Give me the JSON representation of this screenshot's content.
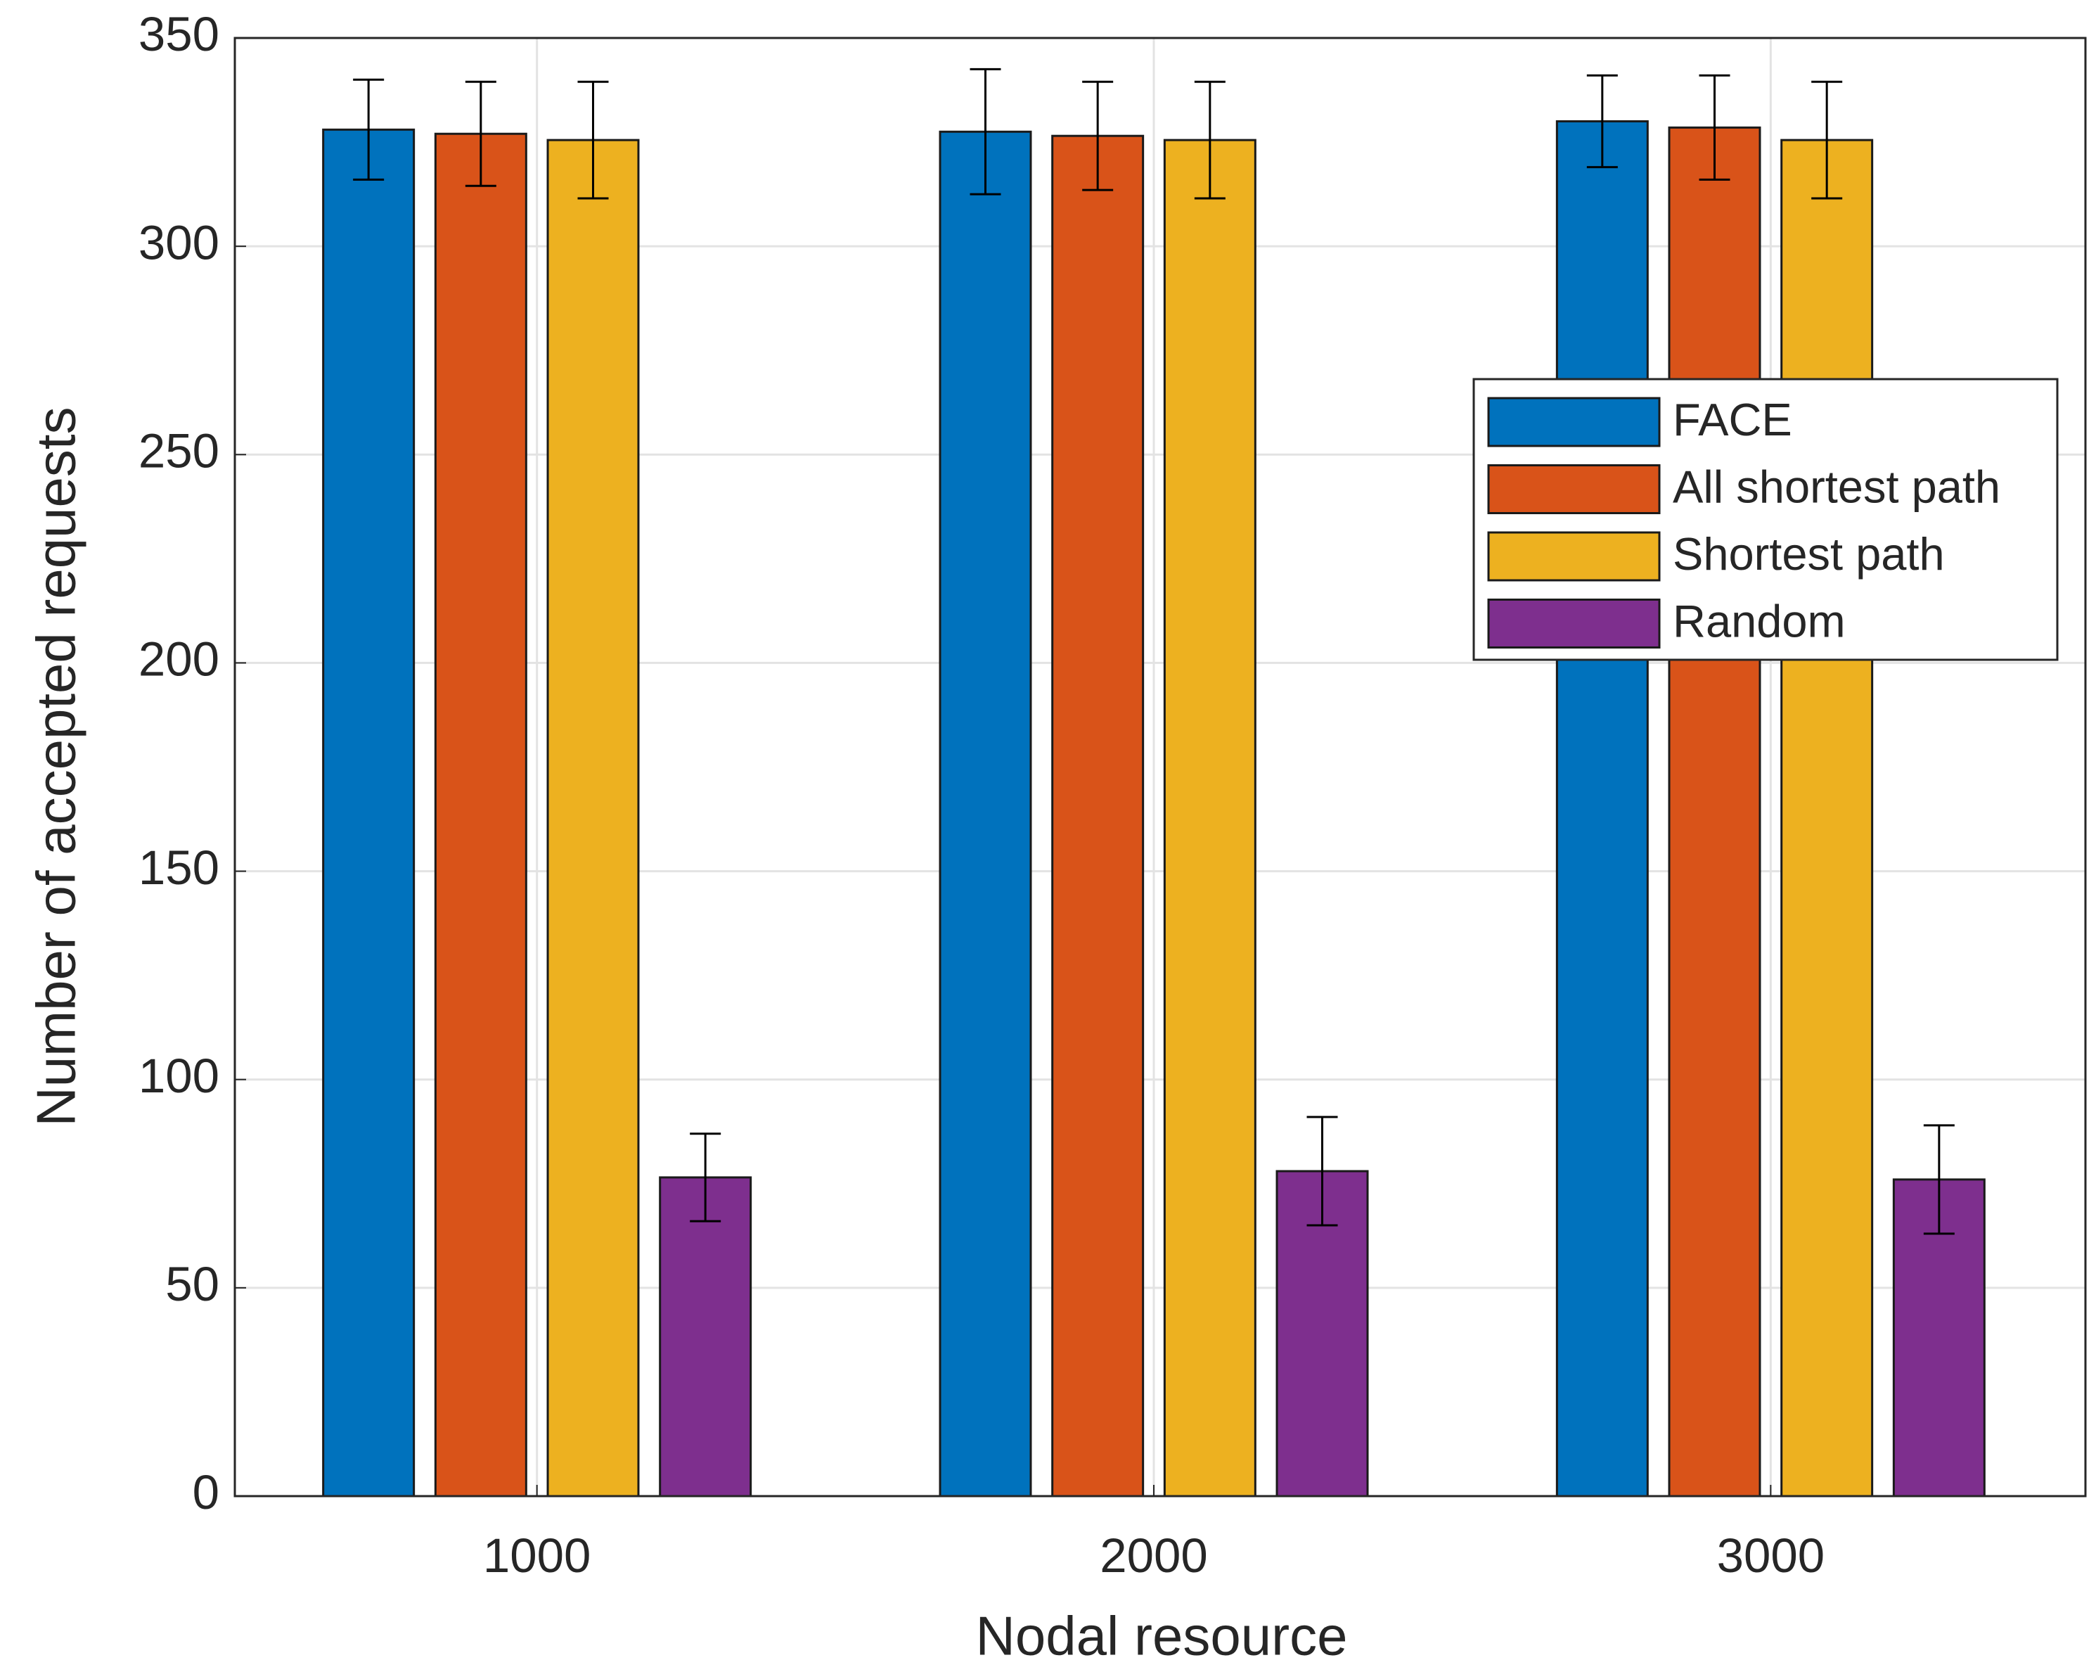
{
  "chart_data": {
    "type": "bar",
    "x_label": "Nodal resource",
    "y_label": "Number of accepted requests",
    "categories": [
      "1000",
      "2000",
      "3000"
    ],
    "series": [
      {
        "name": "FACE",
        "color": "#0072BD",
        "values": [
          328,
          327.5,
          330
        ],
        "errors": [
          12,
          15,
          11
        ]
      },
      {
        "name": "All shortest path",
        "color": "#D95319",
        "values": [
          327,
          326.5,
          328.5
        ],
        "errors": [
          12.5,
          13,
          12.5
        ]
      },
      {
        "name": "Shortest path",
        "color": "#EDB120",
        "values": [
          325.5,
          325.5,
          325.5
        ],
        "errors": [
          14,
          14,
          14
        ]
      },
      {
        "name": "Random",
        "color": "#7E2F8E",
        "values": [
          76.5,
          78,
          76
        ],
        "errors": [
          10.5,
          13,
          13
        ]
      }
    ],
    "ylim": [
      0,
      350
    ],
    "yticks": [
      0,
      50,
      100,
      150,
      200,
      250,
      300,
      350
    ],
    "grid": true,
    "legend": "right"
  }
}
